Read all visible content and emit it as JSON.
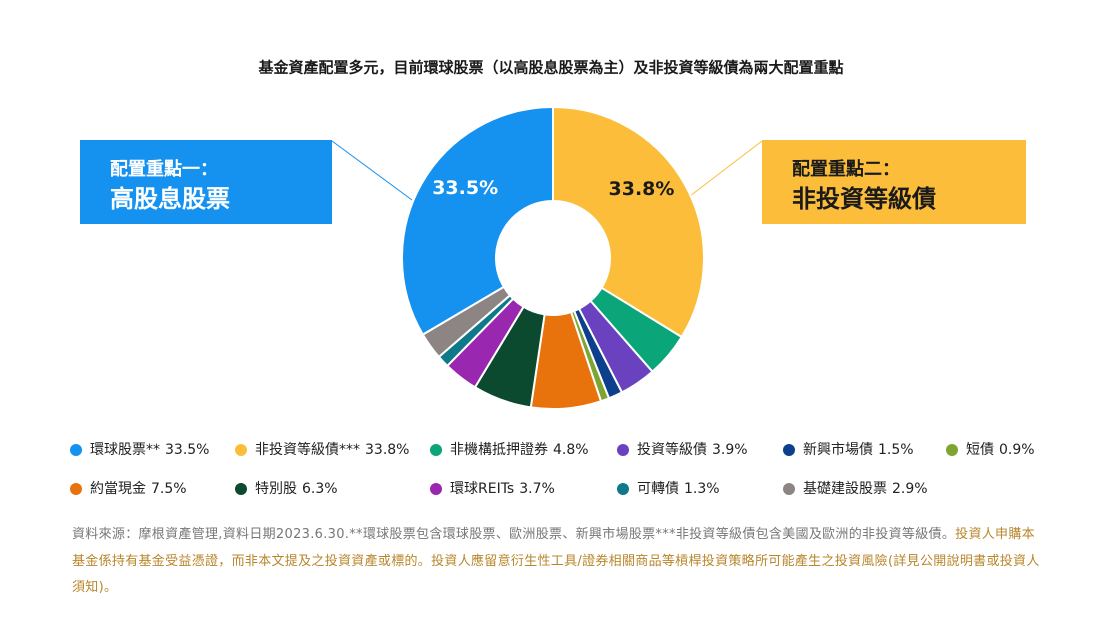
{
  "chart_data": {
    "type": "pie",
    "donut": true,
    "title": "基金資產配置多元，目前環球股票（以高股息股票為主）及非投資等級債為兩大配置重點",
    "categories": [
      "環球股票**",
      "非投資等級債***",
      "非機構抵押證券",
      "投資等級債",
      "新興市場債",
      "短債",
      "約當現金",
      "特別股",
      "環球REITs",
      "可轉債",
      "基礎建設股票"
    ],
    "values": [
      33.5,
      33.8,
      4.8,
      3.9,
      1.5,
      0.9,
      7.5,
      6.3,
      3.7,
      1.3,
      2.9
    ],
    "value_labels": [
      "33.5%",
      "33.8%",
      "4.8%",
      "3.9%",
      "1.5%",
      "0.9%",
      "7.5%",
      "6.3%",
      "3.7%",
      "1.3%",
      "2.9%"
    ],
    "colors": [
      "#1591ef",
      "#fbbd3a",
      "#0aa67a",
      "#6a42c0",
      "#0d3f8c",
      "#7ea531",
      "#e8720c",
      "#0b4a2e",
      "#9a27b0",
      "#0f7889",
      "#8c8584"
    ],
    "annotations": [
      {
        "heading": "配置重點一：",
        "label": "高股息股票",
        "color": "#1591ef",
        "text_color": "#ffffff"
      },
      {
        "heading": "配置重點二：",
        "label": "非投資等級債",
        "color": "#fbbd3a",
        "text_color": "#1a1a1a"
      }
    ],
    "source_note": "資料來源：摩根資產管理,資料日期2023.6.30.**環球股票包含環球股票、歐洲股票、新興市場股票***非投資等級債包含美國及歐洲的非投資等級債。",
    "disclaimer": "投資人申購本基金係持有基金受益憑證，而非本文提及之投資資產或標的。投資人應留意衍生性工具/證券相關商品等槓桿投資策略所可能產生之投資風險(詳見公開說明書或投資人須知)。"
  }
}
